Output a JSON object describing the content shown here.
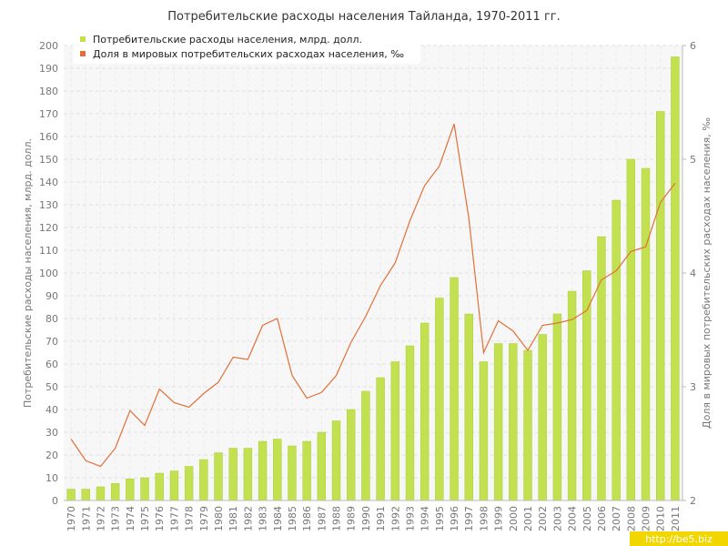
{
  "chart_data": {
    "type": "bar_line",
    "title": "Потребительские расходы населения Тайланда, 1970-2011 гг.",
    "y_label": "Потребительские расходы населения, млрд. долл.",
    "y2_label": "Доля в мировых потребительских расходах населения, ‰",
    "watermark": "http://be5.biz",
    "categories": [
      "1970",
      "1971",
      "1972",
      "1973",
      "1974",
      "1975",
      "1976",
      "1977",
      "1978",
      "1979",
      "1980",
      "1981",
      "1982",
      "1983",
      "1984",
      "1985",
      "1986",
      "1987",
      "1988",
      "1989",
      "1990",
      "1991",
      "1992",
      "1993",
      "1994",
      "1995",
      "1996",
      "1997",
      "1998",
      "1999",
      "2000",
      "2001",
      "2002",
      "2003",
      "2004",
      "2005",
      "2006",
      "2007",
      "2008",
      "2009",
      "2010",
      "2011"
    ],
    "series": [
      {
        "name": "Потребительские расходы населения, млрд. долл.",
        "color": "#c2e04f",
        "kind": "bar",
        "values": [
          5,
          5,
          6,
          7.5,
          9.5,
          10,
          12,
          13,
          15,
          18,
          21,
          23,
          23,
          26,
          27,
          24,
          26,
          30,
          35,
          40,
          48,
          54,
          61,
          68,
          78,
          89,
          98,
          82,
          61,
          69,
          69,
          66,
          73,
          82,
          92,
          101,
          116,
          132,
          150,
          146,
          171,
          195
        ]
      },
      {
        "name": "Доля в мировых потребительских расходах населения, ‰",
        "color": "#e0703a",
        "kind": "line",
        "axis": "y2",
        "values": [
          2.54,
          2.35,
          2.3,
          2.46,
          2.79,
          2.66,
          2.98,
          2.86,
          2.82,
          2.94,
          3.04,
          3.26,
          3.24,
          3.54,
          3.6,
          3.1,
          2.9,
          2.95,
          3.1,
          3.39,
          3.62,
          3.89,
          4.09,
          4.46,
          4.77,
          4.94,
          5.31,
          4.48,
          3.3,
          3.58,
          3.49,
          3.32,
          3.54,
          3.56,
          3.59,
          3.67,
          3.94,
          4.02,
          4.19,
          4.23,
          4.62,
          4.79
        ]
      }
    ],
    "ylim": [
      0,
      200
    ],
    "yticks": [
      0,
      10,
      20,
      30,
      40,
      50,
      60,
      70,
      80,
      90,
      100,
      110,
      120,
      130,
      140,
      150,
      160,
      170,
      180,
      190,
      200
    ],
    "y2lim": [
      2,
      6
    ],
    "y2ticks": [
      2,
      3,
      4,
      5,
      6
    ],
    "grid": true
  }
}
